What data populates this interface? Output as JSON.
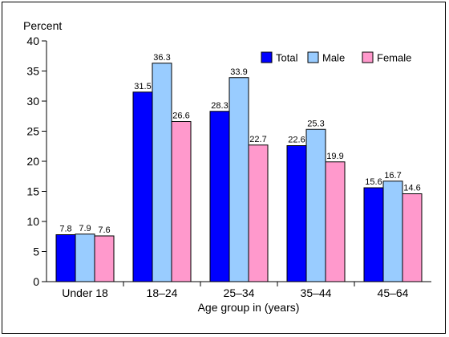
{
  "chart_data": {
    "type": "bar",
    "title": "",
    "ylabel": "Percent",
    "xlabel": "Age group in (years)",
    "ylim": [
      0,
      40
    ],
    "yticks": [
      0,
      5,
      10,
      15,
      20,
      25,
      30,
      35,
      40
    ],
    "grid": false,
    "legend_position": "top-right",
    "categories": [
      "Under 18",
      "18–24",
      "25–34",
      "35–44",
      "45–64"
    ],
    "series": [
      {
        "name": "Total",
        "color": "#0000ff",
        "values": [
          7.8,
          31.5,
          28.3,
          22.6,
          15.6
        ],
        "labels": [
          "7.8",
          "31.5",
          "28.3",
          "22.6",
          "15.6"
        ]
      },
      {
        "name": "Male",
        "color": "#99ccff",
        "values": [
          7.9,
          36.3,
          33.9,
          25.3,
          16.7
        ],
        "labels": [
          "7.9",
          "36.3",
          "33.9",
          "25.3",
          "16.7"
        ]
      },
      {
        "name": "Female",
        "color": "#ff99cc",
        "values": [
          7.6,
          26.6,
          22.7,
          19.9,
          14.6
        ],
        "labels": [
          "7.6",
          "26.6",
          "22.7",
          "19.9",
          "14.6"
        ]
      }
    ]
  }
}
